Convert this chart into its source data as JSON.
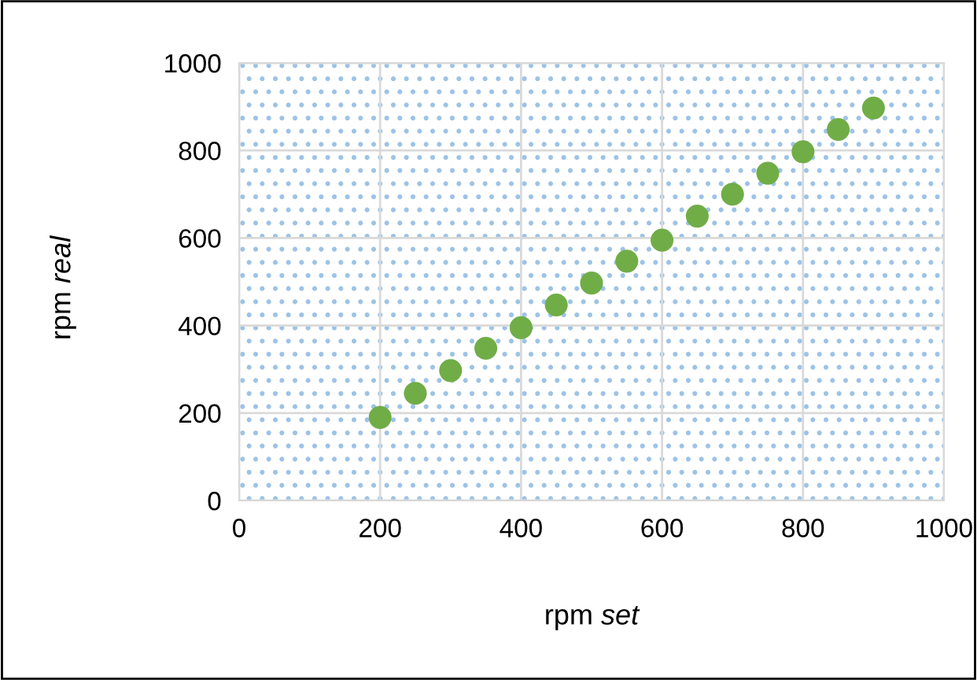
{
  "chart_data": {
    "type": "scatter",
    "xlabel": "rpm set",
    "ylabel": "rpm real",
    "x": [
      200,
      250,
      300,
      350,
      400,
      450,
      500,
      550,
      600,
      650,
      700,
      750,
      800,
      850,
      900
    ],
    "series": [
      {
        "color": "#70ad47",
        "values": [
          190,
          245,
          297,
          348,
          395,
          447,
          497,
          547,
          595,
          650,
          700,
          748,
          797,
          848,
          897
        ]
      }
    ],
    "xlim": [
      0,
      1000
    ],
    "ylim": [
      0,
      1000
    ],
    "xticks": [
      0,
      200,
      400,
      600,
      800,
      1000
    ],
    "yticks": [
      0,
      200,
      400,
      600,
      800,
      1000
    ],
    "grid": true,
    "marker": "circle"
  }
}
